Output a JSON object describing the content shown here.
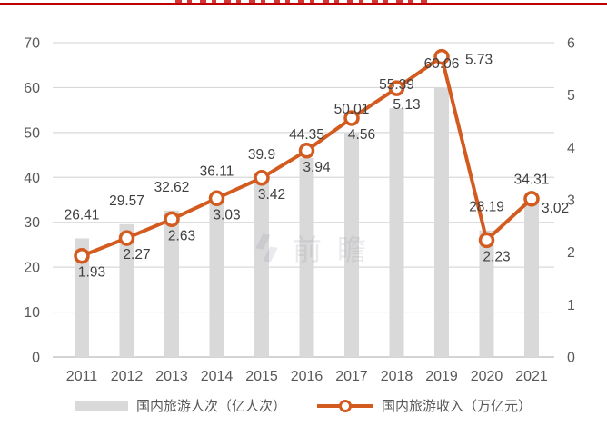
{
  "header": {
    "top_rule_color": "#c00000"
  },
  "watermark": {
    "text": "前瞻"
  },
  "chart_data": {
    "type": "combo-bar-line",
    "categories": [
      "2011",
      "2012",
      "2013",
      "2014",
      "2015",
      "2016",
      "2017",
      "2018",
      "2019",
      "2020",
      "2021"
    ],
    "series": [
      {
        "name": "国内旅游人次（亿人次）",
        "type": "bar",
        "axis": "left",
        "color": "#d9d9d9",
        "values": [
          26.41,
          29.57,
          32.62,
          36.11,
          39.9,
          44.35,
          50.01,
          55.39,
          60.06,
          28.19,
          34.31
        ]
      },
      {
        "name": "国内旅游收入（万亿元）",
        "type": "line",
        "axis": "right",
        "color": "#d35b20",
        "marker": "open-circle",
        "values": [
          1.93,
          2.27,
          2.63,
          3.03,
          3.42,
          3.94,
          4.56,
          5.13,
          5.73,
          2.23,
          3.02
        ],
        "label_sides": [
          "below",
          "below",
          "below",
          "below",
          "below",
          "below",
          "below",
          "below",
          "right",
          "below",
          "right"
        ]
      }
    ],
    "left_axis": {
      "min": 0,
      "max": 70,
      "ticks": [
        0,
        10,
        20,
        30,
        40,
        50,
        60,
        70
      ]
    },
    "right_axis": {
      "min": 0,
      "max": 6,
      "ticks": [
        0,
        1,
        2,
        3,
        4,
        5,
        6
      ]
    },
    "grid": true,
    "legend_position": "bottom",
    "label_color": "#404040",
    "axis_text_color": "#595959",
    "gridline_color": "#d9d9d9"
  }
}
